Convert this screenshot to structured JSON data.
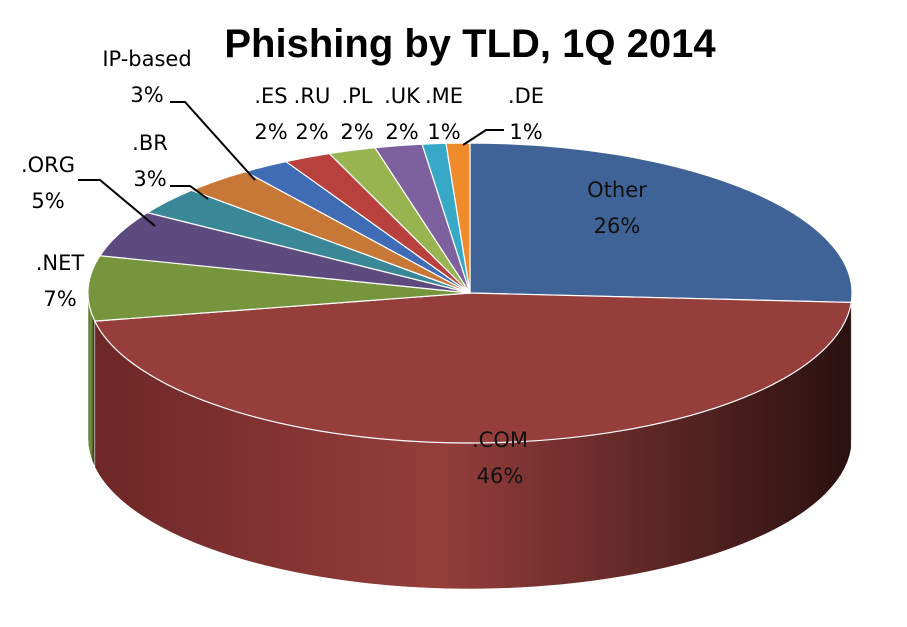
{
  "chart_data": {
    "type": "pie",
    "title": "Phishing by TLD, 1Q 2014",
    "three_d": true,
    "slices": [
      {
        "label": "Other",
        "value": 26,
        "value_label": "26%",
        "color": "#3f6396",
        "side_color": "#2b466d"
      },
      {
        "label": ".COM",
        "value": 46,
        "value_label": "46%",
        "color": "#953e3c",
        "side_color": "#6d2726"
      },
      {
        "label": ".NET",
        "value": 7,
        "value_label": "7%",
        "color": "#76953c",
        "side_color": "#566e2b"
      },
      {
        "label": ".ORG",
        "value": 5,
        "value_label": "5%",
        "color": "#5d4a7e",
        "side_color": "#433660"
      },
      {
        "label": ".BR",
        "value": 3,
        "value_label": "3%",
        "color": "#3a8798",
        "side_color": "#2a6270"
      },
      {
        "label": "IP-based",
        "value": 3,
        "value_label": "3%",
        "color": "#c87836",
        "side_color": "#955826"
      },
      {
        "label": ".ES",
        "value": 2,
        "value_label": "2%",
        "color": "#3f6cb4",
        "side_color": "#2c4d82"
      },
      {
        "label": ".RU",
        "value": 2,
        "value_label": "2%",
        "color": "#b8413d",
        "side_color": "#87302c"
      },
      {
        "label": ".PL",
        "value": 2,
        "value_label": "2%",
        "color": "#98b451",
        "side_color": "#6f8439"
      },
      {
        "label": ".UK",
        "value": 2,
        "value_label": "2%",
        "color": "#7d619e",
        "side_color": "#5a4573"
      },
      {
        "label": ".ME",
        "value": 1,
        "value_label": "1%",
        "color": "#37a9c7",
        "side_color": "#267a91"
      },
      {
        "label": ".DE",
        "value": 1,
        "value_label": "1%",
        "color": "#f08b2c",
        "side_color": "#b3661f"
      }
    ]
  }
}
